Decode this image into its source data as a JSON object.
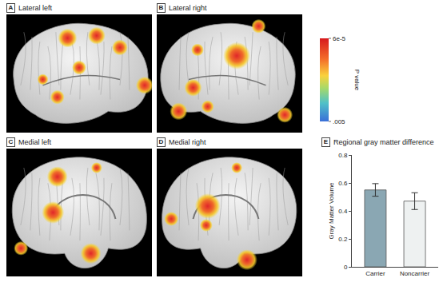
{
  "brain_panels": [
    {
      "letter": "A",
      "title": "Lateral left"
    },
    {
      "letter": "B",
      "title": "Lateral right"
    },
    {
      "letter": "C",
      "title": "Medial left"
    },
    {
      "letter": "D",
      "title": "Medial right"
    }
  ],
  "colorbar": {
    "title": "P value",
    "range": [
      0.005,
      6e-05
    ],
    "ticks": [
      {
        "value": 6e-05,
        "label": "6e-5"
      },
      {
        "value": 0.005,
        "label": ".005"
      }
    ]
  },
  "chart_data": {
    "type": "bar",
    "letter": "E",
    "title": "Regional gray matter difference",
    "y_label": "Gray Matter Volume",
    "categories": [
      "Carrier",
      "Noncarrier"
    ],
    "values": [
      0.55,
      0.47
    ],
    "errors": [
      0.045,
      0.06
    ],
    "colors": [
      "#8aa7b3",
      "#eef1f1"
    ],
    "ylim": [
      0,
      0.8
    ],
    "yticks": [
      0,
      0.2,
      0.4,
      0.6,
      0.8
    ],
    "grid": false
  }
}
